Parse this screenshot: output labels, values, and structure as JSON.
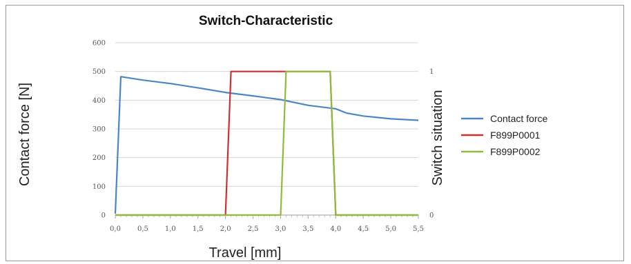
{
  "chart_data": {
    "type": "line",
    "title": "Switch-Characteristic",
    "xlabel": "Travel [mm]",
    "ylabel": "Contact force  [N]",
    "y2label": "Switch situation",
    "xlim": [
      0,
      5.5
    ],
    "ylim": [
      0,
      600
    ],
    "y2lim": [
      0,
      1.2
    ],
    "x_ticks": [
      "0,0",
      "0,5",
      "1,0",
      "1,5",
      "2,0",
      "2,5",
      "3,0",
      "3,5",
      "4,0",
      "4,5",
      "5,0",
      "5,5"
    ],
    "y_ticks": [
      "0",
      "100",
      "200",
      "300",
      "400",
      "500",
      "600"
    ],
    "y2_ticks": [
      "0",
      "1"
    ],
    "grid": "horizontal",
    "legend_position": "right",
    "series": [
      {
        "name": "Contact force",
        "axis": "left",
        "color": "#4a86c5",
        "x": [
          0.0,
          0.1,
          0.5,
          1.0,
          1.5,
          2.0,
          2.5,
          3.0,
          3.5,
          4.0,
          4.2,
          4.5,
          5.0,
          5.5
        ],
        "y": [
          5,
          482,
          470,
          458,
          443,
          427,
          415,
          402,
          382,
          370,
          355,
          345,
          335,
          330
        ]
      },
      {
        "name": "F899P0001",
        "axis": "right",
        "color": "#d0302c",
        "x": [
          0.0,
          2.0,
          2.1,
          3.9,
          4.0,
          5.5
        ],
        "y": [
          0,
          0,
          1,
          1,
          0,
          0
        ]
      },
      {
        "name": "F899P0002",
        "axis": "right",
        "color": "#8cbd3a",
        "x": [
          0.0,
          3.0,
          3.1,
          3.9,
          4.0,
          5.5
        ],
        "y": [
          0,
          0,
          1,
          1,
          0,
          0
        ]
      }
    ]
  }
}
